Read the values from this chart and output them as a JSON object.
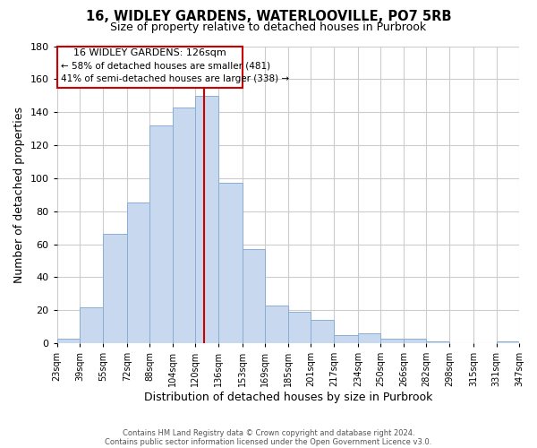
{
  "title": "16, WIDLEY GARDENS, WATERLOOVILLE, PO7 5RB",
  "subtitle": "Size of property relative to detached houses in Purbrook",
  "xlabel": "Distribution of detached houses by size in Purbrook",
  "ylabel": "Number of detached properties",
  "footnote1": "Contains HM Land Registry data © Crown copyright and database right 2024.",
  "footnote2": "Contains public sector information licensed under the Open Government Licence v3.0.",
  "property_label": "16 WIDLEY GARDENS: 126sqm",
  "annotation_line1": "← 58% of detached houses are smaller (481)",
  "annotation_line2": "41% of semi-detached houses are larger (338) →",
  "bins": [
    23,
    39,
    55,
    72,
    88,
    104,
    120,
    136,
    153,
    169,
    185,
    201,
    217,
    234,
    250,
    266,
    282,
    298,
    315,
    331,
    347
  ],
  "counts": [
    3,
    22,
    66,
    85,
    132,
    143,
    150,
    97,
    57,
    23,
    19,
    14,
    5,
    6,
    3,
    3,
    1,
    0,
    0,
    1
  ],
  "bar_color": "#c8d8ee",
  "bar_edge_color": "#8aaed4",
  "vline_x": 126,
  "vline_color": "#cc0000",
  "box_color": "#cc0000",
  "background_color": "#ffffff",
  "grid_color": "#cccccc",
  "ylim": [
    0,
    180
  ],
  "yticks": [
    0,
    20,
    40,
    60,
    80,
    100,
    120,
    140,
    160,
    180
  ]
}
